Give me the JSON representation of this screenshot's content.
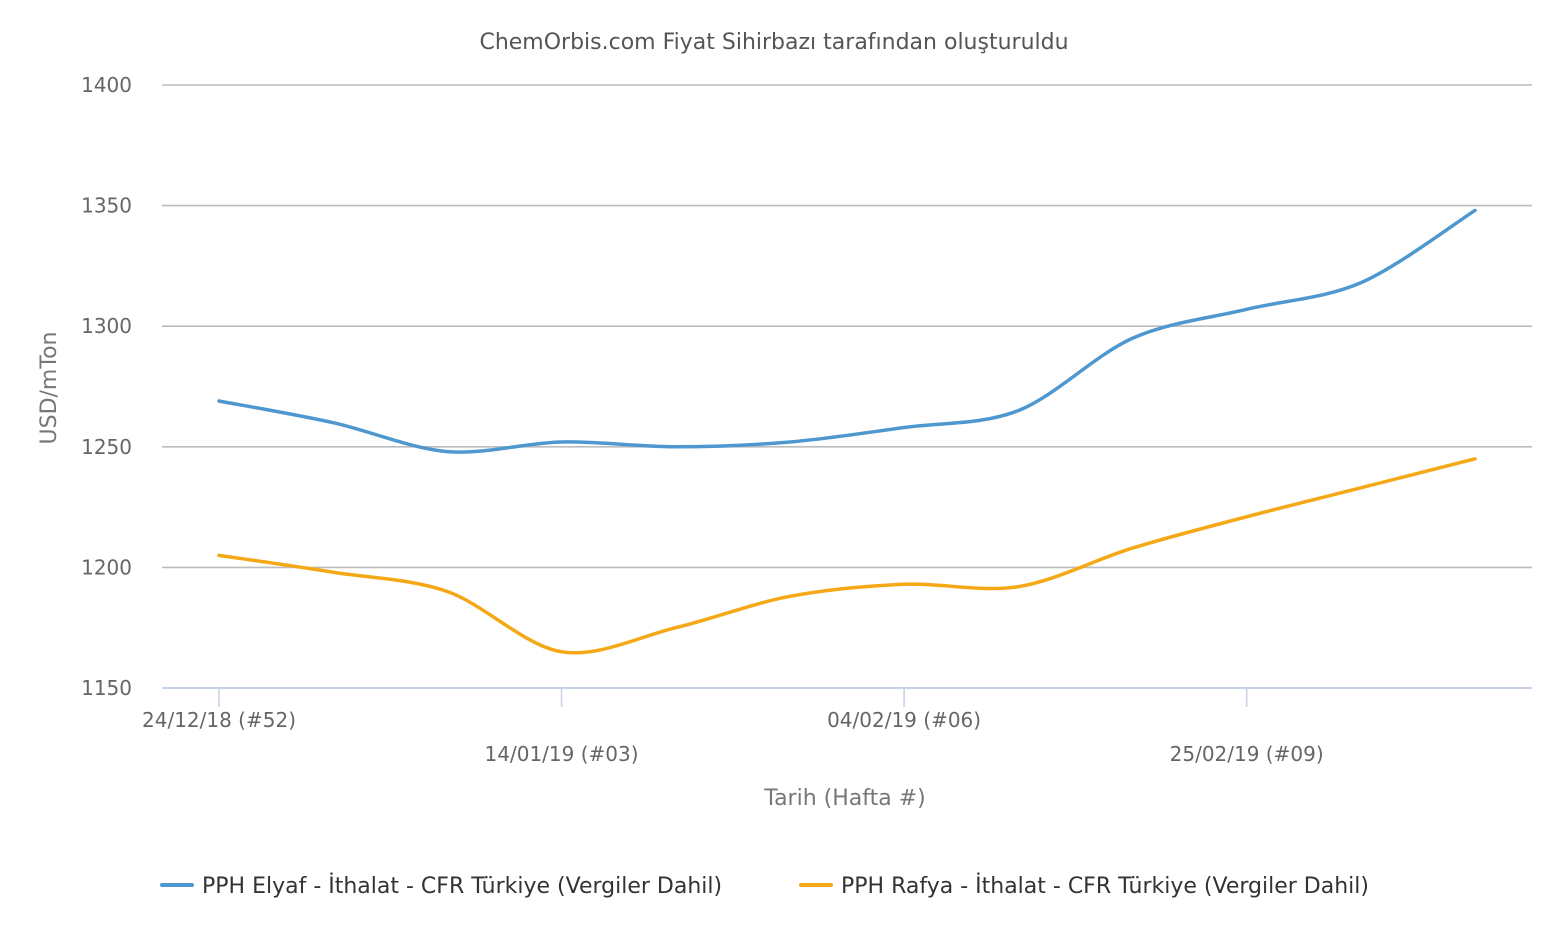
{
  "chart_data": {
    "type": "line",
    "title": "ChemOrbis.com Fiyat Sihirbazı tarafından oluşturuldu",
    "xlabel": "Tarih (Hafta #)",
    "ylabel": "USD/mTon",
    "ylim": [
      1150,
      1400
    ],
    "yticks": [
      1150,
      1200,
      1250,
      1300,
      1350,
      1400
    ],
    "grid": true,
    "legend_position": "bottom",
    "x_tick_labels": [
      "24/12/18 (#52)",
      "14/01/19 (#03)",
      "04/02/19 (#06)",
      "25/02/19 (#09)"
    ],
    "x": [
      "24/12/18",
      "31/12/18",
      "07/01/19",
      "14/01/19",
      "21/01/19",
      "28/01/19",
      "04/02/19",
      "11/02/19",
      "18/02/19",
      "25/02/19",
      "04/03/19",
      "11/03/19"
    ],
    "series": [
      {
        "name": "PPH Elyaf - İthalat - CFR Türkiye (Vergiler Dahil)",
        "color": "#4e98cf",
        "values": [
          1269,
          1260,
          1248,
          1252,
          1250,
          1252,
          1258,
          1265,
          1295,
          1307,
          1318,
          1348
        ]
      },
      {
        "name": "PPH Rafya - İthalat - CFR Türkiye (Vergiler Dahil)",
        "color": "#f5a816",
        "values": [
          1205,
          1198,
          1190,
          1165,
          1175,
          1188,
          1193,
          1192,
          1208,
          1221,
          1233,
          1245
        ]
      }
    ]
  }
}
